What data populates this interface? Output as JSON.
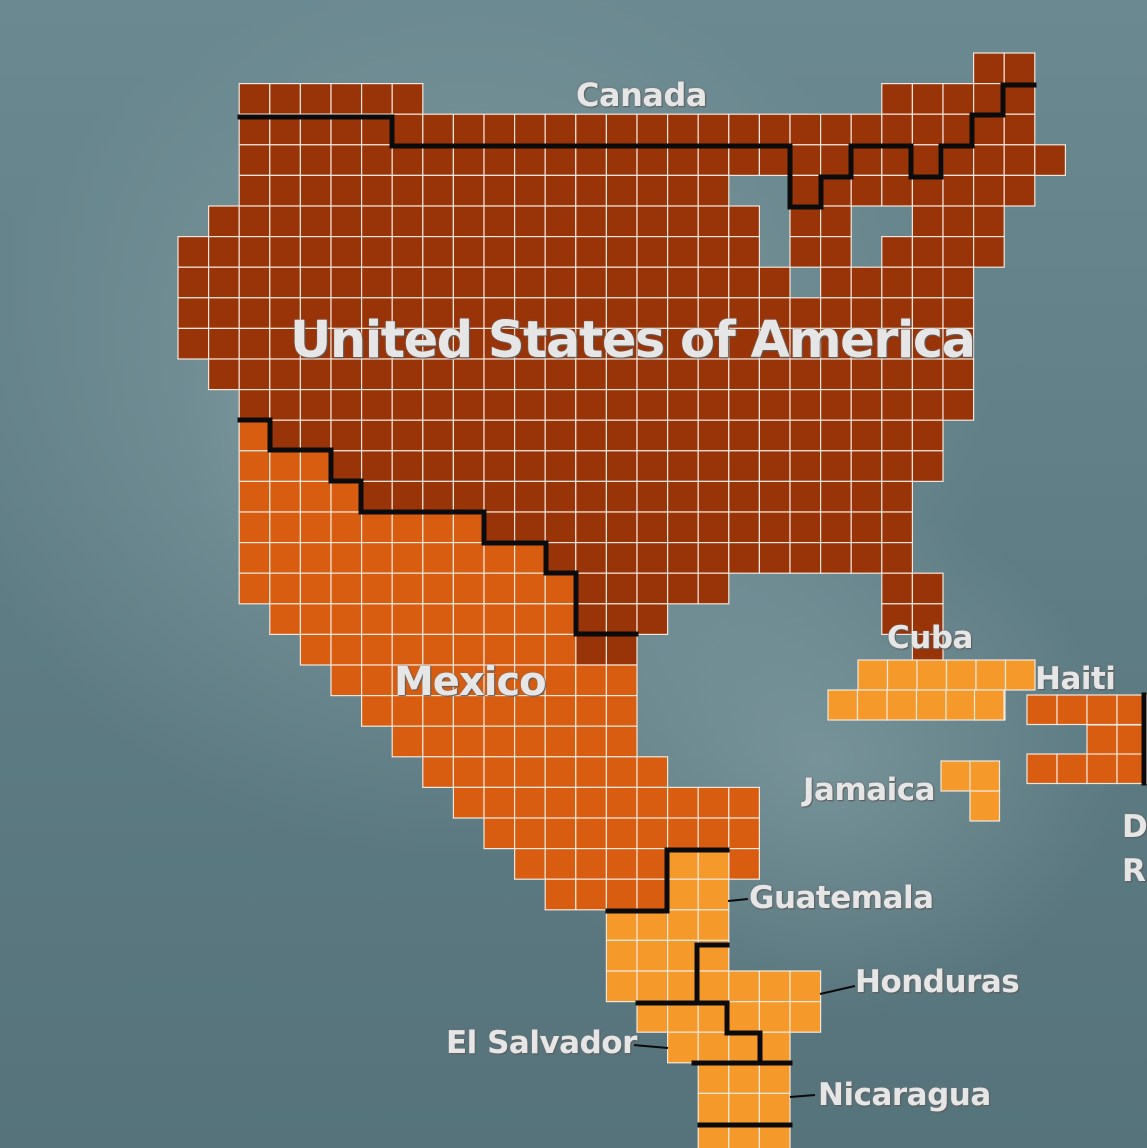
{
  "labels": {
    "canada": "Canada",
    "usa": "United States of America",
    "mexico": "Mexico",
    "cuba": "Cuba",
    "haiti": "Haiti",
    "jamaica": "Jamaica",
    "dominican_republic_line1": "D",
    "dominican_republic_line2": "R",
    "guatemala": "Guatemala",
    "honduras": "Honduras",
    "el_salvador": "El Salvador",
    "nicaragua": "Nicaragua"
  },
  "colors": {
    "canada": "#993308",
    "usa": "#993308",
    "mexico": "#d85d10",
    "cuba": "#f59a2a",
    "central_america": "#f59a2a",
    "jamaica": "#f59a2a",
    "haiti": "#d85d10",
    "grid_line": "#f1e7dc",
    "border": "#0b0b0b",
    "label_text": "#e6e6e6",
    "background": "#5e7c84"
  }
}
